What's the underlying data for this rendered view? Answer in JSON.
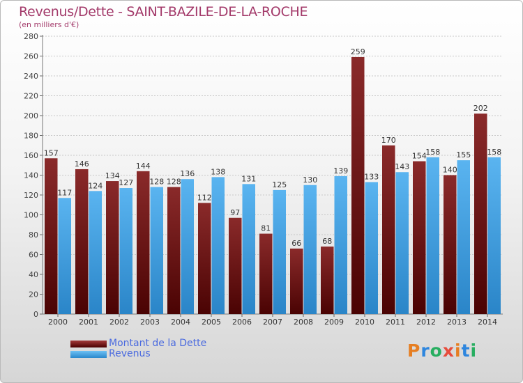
{
  "title": "Revenus/Dette - SAINT-BAZILE-DE-LA-ROCHE",
  "subtitle": "(en milliers d'€)",
  "legend": {
    "dette": "Montant de la Dette",
    "revenus": "Revenus"
  },
  "logo": "Proxiti",
  "colors": {
    "dette": "#7a1d1d",
    "revenus": "#4aa8e8",
    "title": "#a33a6a",
    "legend_text": "#4a6adf"
  },
  "chart_data": {
    "type": "bar",
    "title": "Revenus/Dette - SAINT-BAZILE-DE-LA-ROCHE",
    "ylabel": "(en milliers d'€)",
    "categories": [
      "2000",
      "2001",
      "2002",
      "2003",
      "2004",
      "2005",
      "2006",
      "2007",
      "2008",
      "2009",
      "2010",
      "2011",
      "2012",
      "2013",
      "2014"
    ],
    "series": [
      {
        "name": "Montant de la Dette",
        "values": [
          157,
          146,
          134,
          144,
          128,
          112,
          97,
          81,
          66,
          68,
          259,
          170,
          154,
          140,
          202
        ]
      },
      {
        "name": "Revenus",
        "values": [
          117,
          124,
          127,
          128,
          136,
          138,
          131,
          125,
          130,
          139,
          133,
          143,
          158,
          155,
          158
        ]
      }
    ],
    "ylim": [
      0,
      280
    ],
    "yticks": [
      0,
      20,
      40,
      60,
      80,
      100,
      120,
      140,
      160,
      180,
      200,
      220,
      240,
      260,
      280
    ],
    "grid": true,
    "legend_position": "bottom-left"
  }
}
